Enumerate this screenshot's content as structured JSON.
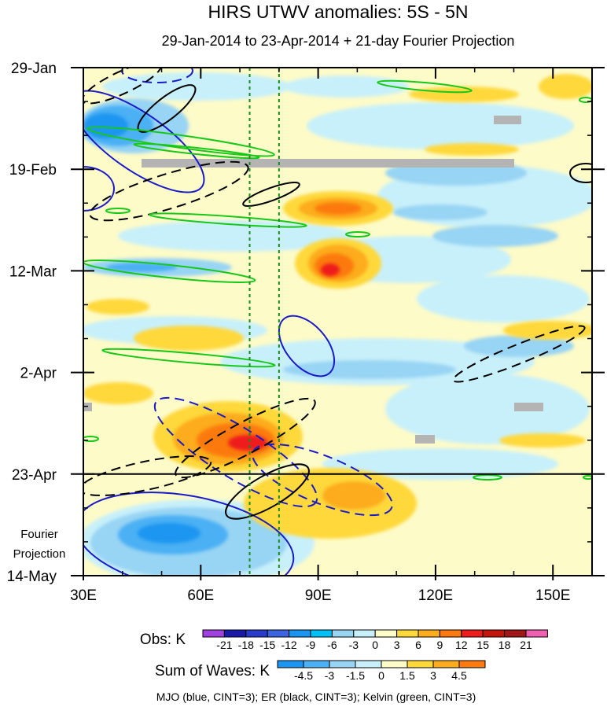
{
  "chart_data": {
    "type": "heatmap",
    "title": "HIRS UTWV anomalies: 5S - 5N",
    "subtitle": "29-Jan-2014 to 23-Apr-2014 + 21-day Fourier Projection",
    "x_axis": {
      "range": [
        30,
        160
      ],
      "ticks": [
        {
          "value": 30,
          "label": "30E"
        },
        {
          "value": 60,
          "label": "60E"
        },
        {
          "value": 90,
          "label": "90E"
        },
        {
          "value": 120,
          "label": "120E"
        },
        {
          "value": 150,
          "label": "150E"
        }
      ],
      "minor_step": 10
    },
    "y_axis": {
      "range_days": [
        0,
        105
      ],
      "ticks": [
        {
          "day": 0,
          "label": "29-Jan"
        },
        {
          "day": 21,
          "label": "19-Feb"
        },
        {
          "day": 42,
          "label": "12-Mar"
        },
        {
          "day": 63,
          "label": "2-Apr"
        },
        {
          "day": 84,
          "label": "23-Apr"
        },
        {
          "day": 105,
          "label": "14-May"
        }
      ],
      "minor_step_days": 7
    },
    "projection_start_day": 84,
    "projection_label_line1": "Fourier",
    "projection_label_line2": "Projection",
    "vertical_marker_lon": [
      72.5,
      80
    ],
    "obs_legend": {
      "label": "Obs: K",
      "levels": [
        "-21",
        "-18",
        "-15",
        "-12",
        "-9",
        "-6",
        "-3",
        "0",
        "3",
        "6",
        "9",
        "12",
        "15",
        "18",
        "21"
      ],
      "colors": [
        "#a040e0",
        "#1a1aa8",
        "#2a3ccc",
        "#3c64e0",
        "#1a96f0",
        "#00c0f8",
        "#98d4f4",
        "#c8f0fa",
        "#fdfbc8",
        "#ffd83a",
        "#fcac1c",
        "#fc7a10",
        "#ee1c1c",
        "#c4140c",
        "#a01818",
        "#f060b0"
      ]
    },
    "waves_legend": {
      "label": "Sum of Waves: K",
      "levels": [
        "-4.5",
        "-3",
        "-1.5",
        "0",
        "1.5",
        "3",
        "4.5"
      ],
      "colors": [
        "#1a96f0",
        "#4cb0f4",
        "#98d4f4",
        "#c8f0fa",
        "#fdfbc8",
        "#ffd83a",
        "#fcac1c",
        "#fc7a10"
      ]
    },
    "anomaly_features": [
      {
        "lon": 37,
        "day": 12,
        "value": -13,
        "note": "cold/dry core near 30-45E"
      },
      {
        "lon": 52,
        "day": 24,
        "value": -8
      },
      {
        "lon": 97,
        "day": 29,
        "value": 14,
        "note": "warm anomaly ~97E"
      },
      {
        "lon": 97,
        "day": 40,
        "value": 16
      },
      {
        "lon": 72,
        "day": 77,
        "value": 17,
        "note": "strongest positive anomaly"
      },
      {
        "lon": 55,
        "day": 96,
        "value": -5,
        "note": "negative in projection"
      },
      {
        "lon": 100,
        "day": 92,
        "value": 3
      }
    ],
    "contour_sets": [
      {
        "name": "MJO",
        "color": "#1a1ac8",
        "cint": 3
      },
      {
        "name": "ER",
        "color": "#000000",
        "cint": 3
      },
      {
        "name": "Kelvin",
        "color": "#18c818",
        "cint": 3
      }
    ],
    "caption": "MJO (blue, CINT=3); ER (black, CINT=3); Kelvin (green, CINT=3)"
  }
}
